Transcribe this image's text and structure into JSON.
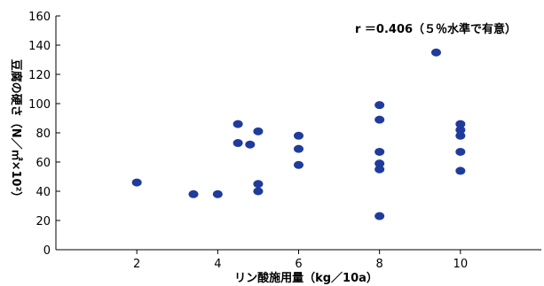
{
  "chart_data": {
    "type": "scatter",
    "xlabel": "リン酸施用量（kg／10a）",
    "ylabel": "豆腐の硬さ（N／㎡×10²）",
    "annotation": "r ＝0.406（５％水準で有意）",
    "xlim": [
      0,
      12
    ],
    "ylim": [
      0,
      160
    ],
    "x_ticks": [
      2,
      4,
      6,
      8,
      10
    ],
    "y_ticks": [
      0,
      20,
      40,
      60,
      80,
      100,
      120,
      140,
      160
    ],
    "grid": false,
    "point_color": "#1f3b9c",
    "points": [
      {
        "x": 2,
        "y": 46
      },
      {
        "x": 3.4,
        "y": 38
      },
      {
        "x": 4,
        "y": 38
      },
      {
        "x": 4.5,
        "y": 86
      },
      {
        "x": 4.5,
        "y": 73
      },
      {
        "x": 4.8,
        "y": 72
      },
      {
        "x": 5,
        "y": 81
      },
      {
        "x": 5,
        "y": 45
      },
      {
        "x": 5,
        "y": 40
      },
      {
        "x": 6,
        "y": 78
      },
      {
        "x": 6,
        "y": 69
      },
      {
        "x": 6,
        "y": 58
      },
      {
        "x": 8,
        "y": 99
      },
      {
        "x": 8,
        "y": 89
      },
      {
        "x": 8,
        "y": 67
      },
      {
        "x": 8,
        "y": 59
      },
      {
        "x": 8,
        "y": 55
      },
      {
        "x": 8,
        "y": 23
      },
      {
        "x": 9.4,
        "y": 135
      },
      {
        "x": 10,
        "y": 86
      },
      {
        "x": 10,
        "y": 82
      },
      {
        "x": 10,
        "y": 78
      },
      {
        "x": 10,
        "y": 67
      },
      {
        "x": 10,
        "y": 54
      }
    ]
  }
}
